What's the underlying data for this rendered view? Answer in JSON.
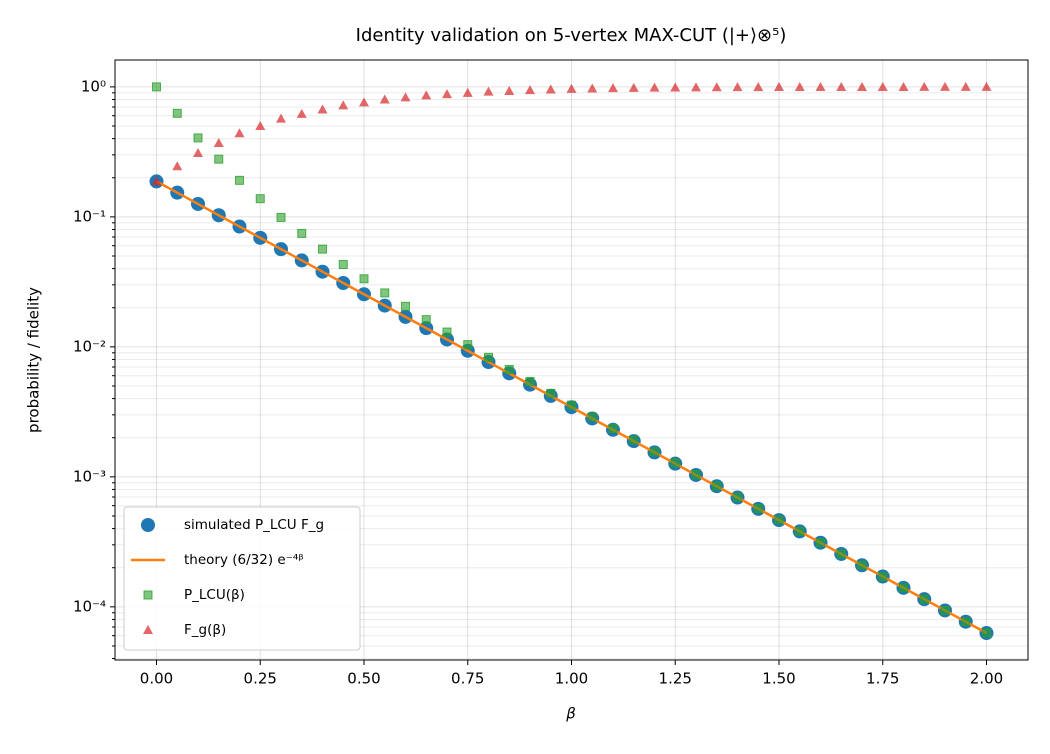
{
  "chart_data": {
    "type": "scatter",
    "title": "Identity validation on 5-vertex MAX-CUT (|+⟩⊗⁵)",
    "xlabel": "β",
    "ylabel": "probability / fidelity",
    "yscale": "log",
    "grid": true,
    "legend": "lower left",
    "x": [
      0,
      0.05,
      0.1,
      0.15,
      0.2,
      0.25,
      0.3,
      0.35,
      0.4,
      0.45,
      0.5,
      0.55,
      0.6,
      0.65,
      0.7,
      0.75,
      0.8,
      0.85,
      0.9,
      0.95,
      1.0,
      1.05,
      1.1,
      1.15,
      1.2,
      1.25,
      1.3,
      1.35,
      1.4,
      1.45,
      1.5,
      1.55,
      1.6,
      1.65,
      1.7,
      1.75,
      1.8,
      1.85,
      1.9,
      1.95,
      2.0
    ],
    "series": [
      {
        "name": "simulated P_LCU F_g",
        "marker": "circle",
        "color": "#1f77b4",
        "values": [
          0.1875,
          0.1535,
          0.1257,
          0.1029,
          0.08425,
          0.06898,
          0.05647,
          0.04624,
          0.03786,
          0.03099,
          0.02538,
          0.02078,
          0.01701,
          0.01393,
          0.0114,
          0.009335,
          0.007643,
          0.006257,
          0.005123,
          0.004195,
          0.003434,
          0.002812,
          0.002302,
          0.001885,
          0.001543,
          0.001263,
          0.001034,
          0.0008469,
          0.0006934,
          0.0005677,
          0.0004648,
          0.0003805,
          0.0003115,
          0.0002551,
          0.0002088,
          0.000171,
          0.00014,
          0.0001146,
          9.383e-05,
          7.682e-05,
          6.29e-05
        ]
      },
      {
        "name": "theory (6/32) e⁻⁴ᵝ",
        "marker": "line",
        "color": "#ff7f0e",
        "values": [
          0.1875,
          0.1535,
          0.1257,
          0.1029,
          0.08425,
          0.06898,
          0.05647,
          0.04624,
          0.03786,
          0.03099,
          0.02538,
          0.02078,
          0.01701,
          0.01393,
          0.0114,
          0.009335,
          0.007643,
          0.006257,
          0.005123,
          0.004195,
          0.003434,
          0.002812,
          0.002302,
          0.001885,
          0.001543,
          0.001263,
          0.001034,
          0.0008469,
          0.0006934,
          0.0005677,
          0.0004648,
          0.0003805,
          0.0003115,
          0.0002551,
          0.0002088,
          0.000171,
          0.00014,
          0.0001146,
          9.383e-05,
          7.682e-05,
          6.29e-05
        ]
      },
      {
        "name": "P_LCU(β)",
        "marker": "square",
        "color": "#2ca02c",
        "values": [
          1.0,
          0.626,
          0.405,
          0.278,
          0.191,
          0.138,
          0.099,
          0.0746,
          0.0565,
          0.043,
          0.0334,
          0.026,
          0.0205,
          0.0162,
          0.013,
          0.0104,
          0.0083,
          0.0067,
          0.00542,
          0.00439,
          0.00356,
          0.00289,
          0.00235,
          0.00192,
          0.00156,
          0.00128,
          0.00104,
          0.000852,
          0.000697,
          0.00057,
          0.000466,
          0.000381,
          0.000312,
          0.000255,
          0.000209,
          0.000171,
          0.00014,
          0.0001146,
          9.38e-05,
          7.68e-05,
          6.29e-05
        ]
      },
      {
        "name": "F_g(β)",
        "marker": "triangle",
        "color": "#d62728",
        "values": [
          0.1875,
          0.245,
          0.31,
          0.37,
          0.44,
          0.5,
          0.57,
          0.62,
          0.67,
          0.72,
          0.76,
          0.8,
          0.83,
          0.86,
          0.88,
          0.9,
          0.92,
          0.93,
          0.945,
          0.955,
          0.965,
          0.972,
          0.978,
          0.983,
          0.987,
          0.99,
          0.992,
          0.994,
          0.995,
          0.996,
          0.997,
          0.998,
          0.998,
          0.999,
          0.999,
          0.999,
          0.999,
          1.0,
          1.0,
          1.0,
          1.0
        ]
      }
    ],
    "xlim": [
      -0.1,
      2.1
    ],
    "xticks": [
      {
        "value": 0,
        "label": "0.00"
      },
      {
        "value": 0.25,
        "label": "0.25"
      },
      {
        "value": 0.5,
        "label": "0.50"
      },
      {
        "value": 0.75,
        "label": "0.75"
      },
      {
        "value": 1,
        "label": "1.00"
      },
      {
        "value": 1.25,
        "label": "1.25"
      },
      {
        "value": 1.5,
        "label": "1.50"
      },
      {
        "value": 1.75,
        "label": "1.75"
      },
      {
        "value": 2,
        "label": "2.00"
      }
    ],
    "ylim": [
      3.9e-05,
      1.61
    ],
    "yticks": [
      {
        "value": 0.0001,
        "label": "10⁻⁴"
      },
      {
        "value": 0.001,
        "label": "10⁻³"
      },
      {
        "value": 0.01,
        "label": "10⁻²"
      },
      {
        "value": 0.1,
        "label": "10⁻¹"
      },
      {
        "value": 1,
        "label": "10⁰"
      }
    ],
    "yminorticks": [
      4e-05,
      5e-05,
      6e-05,
      7e-05,
      8e-05,
      9e-05,
      0.0002,
      0.0003,
      0.0004,
      0.0005,
      0.0006,
      0.0007,
      0.0008,
      0.0009,
      0.002,
      0.003,
      0.004,
      0.005,
      0.006,
      0.007,
      0.008,
      0.009,
      0.02,
      0.03,
      0.04,
      0.05,
      0.06,
      0.07,
      0.08,
      0.09,
      0.2,
      0.3,
      0.4,
      0.5,
      0.6,
      0.7,
      0.8,
      0.9
    ]
  }
}
